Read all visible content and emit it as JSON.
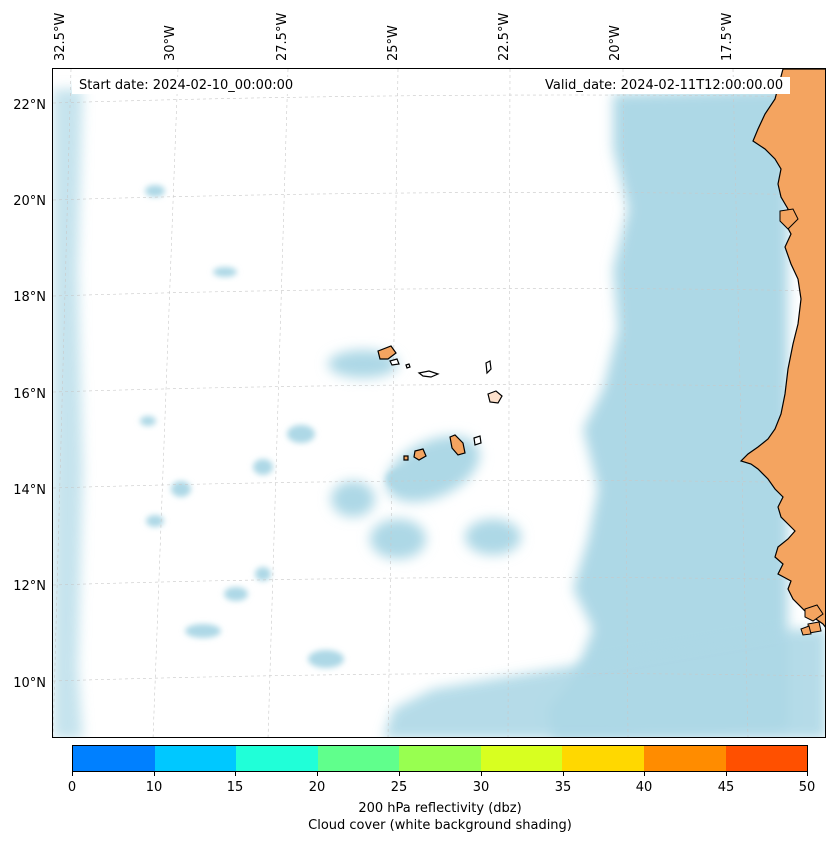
{
  "map": {
    "lon_labels": [
      "32.5°W",
      "30°W",
      "27.5°W",
      "25°W",
      "22.5°W",
      "20°W",
      "17.5°W"
    ],
    "lat_labels": [
      "22°N",
      "20°N",
      "18°N",
      "16°N",
      "14°N",
      "12°N",
      "10°N"
    ],
    "start_date": "Start date: 2024-02-10_00:00:00",
    "valid_date": "Valid_date: 2024-02-11T12:00:00.00",
    "land_color": "#f4a460",
    "cloud_color": "#add8e6",
    "ocean_color": "#ffffff",
    "gridlines": "on"
  },
  "colorbar": {
    "ticks": [
      "0",
      "10",
      "15",
      "20",
      "25",
      "30",
      "35",
      "40",
      "45",
      "50"
    ],
    "colors": [
      "#0080ff",
      "#00c8ff",
      "#20ffd8",
      "#60ff8c",
      "#98ff50",
      "#d8ff20",
      "#ffd800",
      "#ff8c00",
      "#ff5000"
    ],
    "label": "200 hPa reflectivity (dbz)",
    "sublabel": "Cloud cover (white background shading)"
  }
}
